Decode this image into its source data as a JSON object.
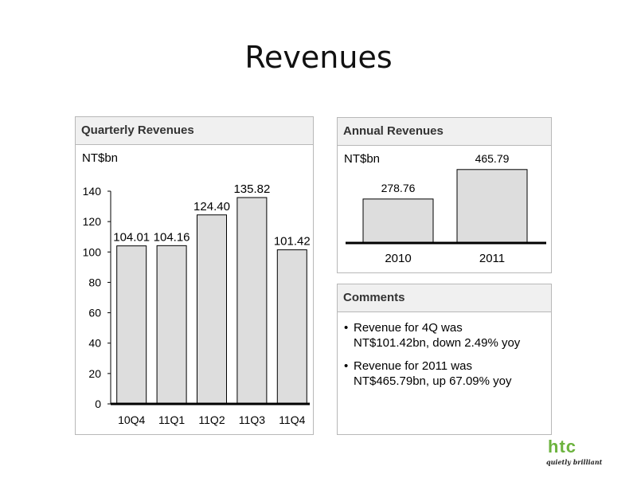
{
  "slide": {
    "title": "Revenues"
  },
  "quarterly": {
    "header": "Quarterly Revenues"
  },
  "annual": {
    "header": "Annual Revenues"
  },
  "comments": {
    "header": "Comments",
    "bullet": "•",
    "items": [
      {
        "line1": "Revenue for 4Q was",
        "line2": "NT$101.42bn, down 2.49% yoy"
      },
      {
        "line1": "Revenue for 2011 was",
        "line2": "NT$465.79bn, up 67.09% yoy"
      }
    ]
  },
  "logo": {
    "mark": "htc",
    "tagline": "quietly brilliant",
    "color": "#6cb33e"
  },
  "chart_data": [
    {
      "type": "bar",
      "title": "Quarterly Revenues",
      "unit": "NT$bn",
      "categories": [
        "10Q4",
        "11Q1",
        "11Q2",
        "11Q3",
        "11Q4"
      ],
      "values": [
        104.01,
        104.16,
        124.4,
        135.82,
        101.42
      ],
      "labels": [
        "104.01",
        "104.16",
        "124.40",
        "135.82",
        "101.42"
      ],
      "yticks": [
        "0",
        "20",
        "40",
        "60",
        "80",
        "100",
        "120",
        "140"
      ],
      "ylim": [
        0,
        140
      ],
      "bar_color": "#dddddd",
      "grid": false
    },
    {
      "type": "bar",
      "title": "Annual Revenues",
      "unit": "NT$bn",
      "categories": [
        "2010",
        "2011"
      ],
      "values": [
        278.76,
        465.79
      ],
      "labels": [
        "278.76",
        "465.79"
      ],
      "ylim": [
        0,
        490
      ],
      "bar_color": "#dddddd",
      "grid": false
    }
  ]
}
